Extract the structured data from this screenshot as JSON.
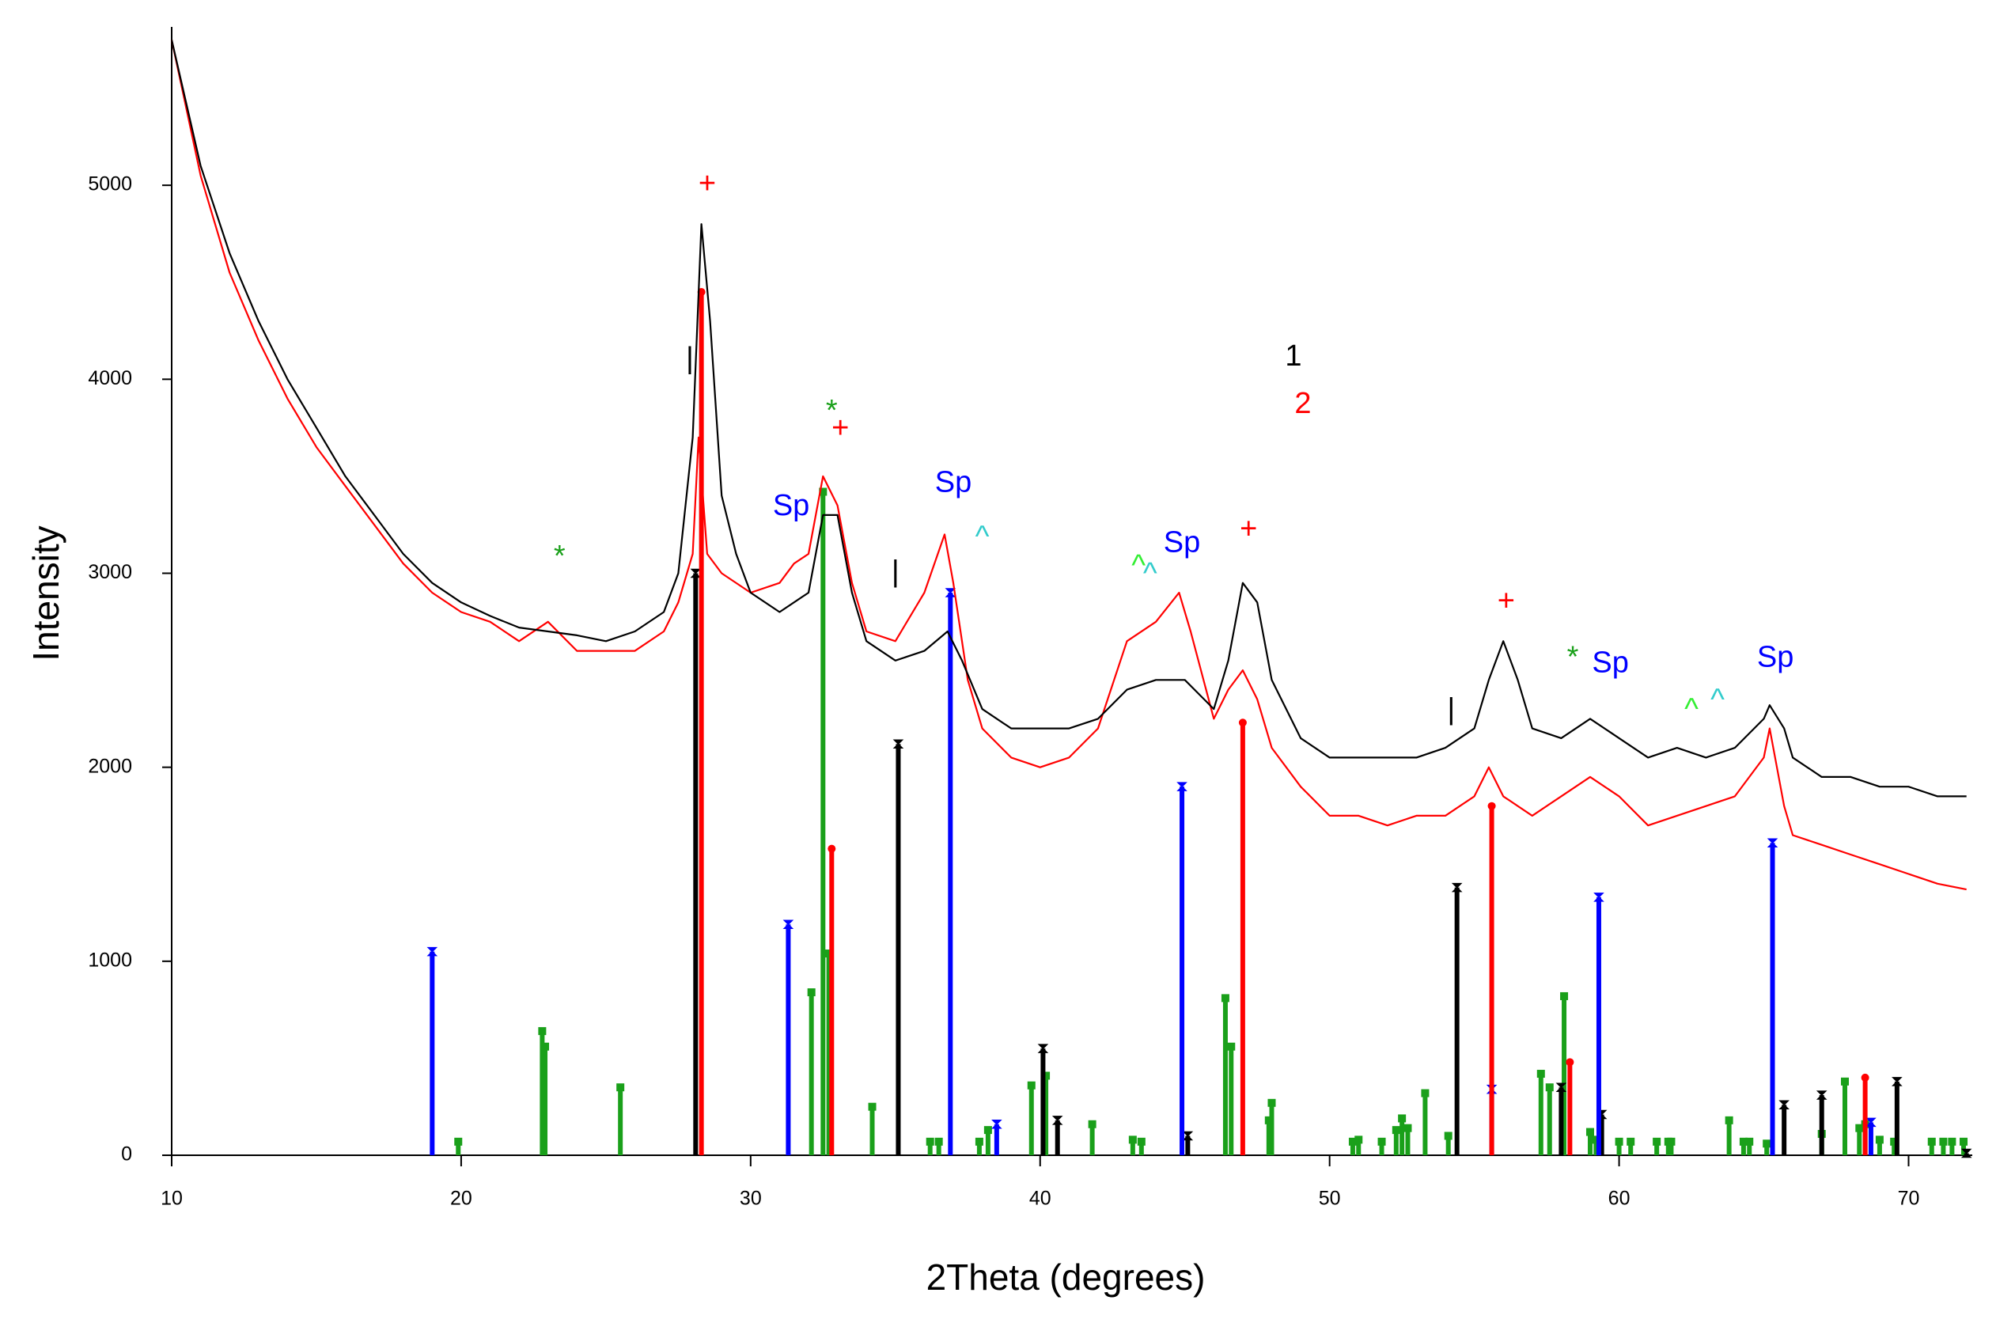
{
  "chart_data": {
    "type": "line",
    "x_label": "2Theta (degrees)",
    "y_label": "Intensity",
    "xlim": [
      10,
      72.2
    ],
    "ylim": [
      0,
      5800
    ],
    "xticks": [
      10,
      20,
      30,
      40,
      50,
      60,
      70
    ],
    "yticks": [
      0,
      1000,
      2000,
      3000,
      4000,
      5000
    ],
    "series": [
      {
        "name": "1",
        "color": "#000000",
        "x": [
          10,
          11,
          12,
          13,
          14,
          15,
          16,
          17,
          18,
          19,
          20,
          21,
          22,
          23,
          24,
          25,
          26,
          27,
          27.5,
          28,
          28.3,
          28.6,
          29,
          29.5,
          30,
          31,
          32,
          32.5,
          33,
          33.5,
          34,
          35,
          36,
          36.8,
          37.3,
          38,
          39,
          40,
          41,
          42,
          43,
          44,
          45,
          46,
          46.5,
          47,
          47.5,
          48,
          49,
          50,
          51,
          52,
          53,
          54,
          55,
          55.5,
          56,
          56.5,
          57,
          58,
          59,
          60,
          61,
          62,
          63,
          64,
          65,
          65.2,
          65.7,
          66,
          67,
          68,
          69,
          70,
          71,
          72
        ],
        "values": [
          5750,
          5100,
          4650,
          4300,
          4000,
          3750,
          3500,
          3300,
          3100,
          2950,
          2850,
          2780,
          2720,
          2700,
          2680,
          2650,
          2700,
          2800,
          3000,
          3700,
          4800,
          4300,
          3400,
          3100,
          2900,
          2800,
          2900,
          3300,
          3300,
          2900,
          2650,
          2550,
          2600,
          2700,
          2550,
          2300,
          2200,
          2200,
          2200,
          2250,
          2400,
          2450,
          2450,
          2300,
          2550,
          2950,
          2850,
          2450,
          2150,
          2050,
          2050,
          2050,
          2050,
          2100,
          2200,
          2450,
          2650,
          2450,
          2200,
          2150,
          2250,
          2150,
          2050,
          2100,
          2050,
          2100,
          2250,
          2320,
          2200,
          2050,
          1950,
          1950,
          1900,
          1900,
          1850,
          1850
        ]
      },
      {
        "name": "2",
        "color": "#ff0000",
        "x": [
          10,
          11,
          12,
          13,
          14,
          15,
          16,
          17,
          18,
          19,
          20,
          21,
          22,
          23,
          24,
          25,
          26,
          27,
          27.5,
          28,
          28.2,
          28.5,
          29,
          30,
          31,
          31.5,
          32,
          32.5,
          33,
          33.5,
          34,
          35,
          36,
          36.7,
          37,
          37.5,
          38,
          39,
          40,
          41,
          42,
          43,
          44,
          44.8,
          45.2,
          46,
          46.5,
          47,
          47.5,
          48,
          49,
          50,
          51,
          52,
          53,
          54,
          55,
          55.5,
          56,
          57,
          58,
          59,
          60,
          61,
          62,
          63,
          64,
          65,
          65.2,
          65.7,
          66,
          67,
          68,
          69,
          70,
          71,
          72
        ],
        "values": [
          5750,
          5050,
          4550,
          4200,
          3900,
          3650,
          3450,
          3250,
          3050,
          2900,
          2800,
          2750,
          2650,
          2750,
          2600,
          2600,
          2600,
          2700,
          2850,
          3100,
          3700,
          3100,
          3000,
          2900,
          2950,
          3050,
          3100,
          3500,
          3350,
          2950,
          2700,
          2650,
          2900,
          3200,
          2950,
          2450,
          2200,
          2050,
          2000,
          2050,
          2200,
          2650,
          2750,
          2900,
          2700,
          2250,
          2400,
          2500,
          2350,
          2100,
          1900,
          1750,
          1750,
          1700,
          1750,
          1750,
          1850,
          2000,
          1850,
          1750,
          1850,
          1950,
          1850,
          1700,
          1750,
          1800,
          1850,
          2050,
          2200,
          1800,
          1650,
          1600,
          1550,
          1500,
          1450,
          1400,
          1370
        ]
      }
    ],
    "sticks": [
      {
        "color": "#1aa01a",
        "marker": "square",
        "x": [
          19.9,
          22.8,
          22.9,
          25.5,
          32.1,
          32.5,
          32.7,
          34.2,
          36.2,
          36.5,
          37.9,
          38.2,
          39.7,
          40.2,
          41.8,
          43.2,
          43.5,
          46.4,
          46.6,
          47.9,
          48.0,
          50.8,
          51.0,
          51.8,
          52.3,
          52.5,
          52.7,
          53.3,
          54.1,
          57.3,
          57.6,
          58.1,
          59.0,
          59.2,
          60.0,
          60.4,
          61.3,
          61.7,
          61.8,
          63.8,
          64.3,
          64.5,
          65.1,
          67.0,
          67.8,
          68.3,
          68.5,
          69.0,
          69.5,
          70.8,
          71.2,
          71.5,
          71.9
        ],
        "values": [
          70,
          640,
          560,
          350,
          840,
          3420,
          1040,
          250,
          70,
          70,
          70,
          130,
          360,
          410,
          160,
          80,
          70,
          810,
          560,
          180,
          270,
          70,
          80,
          70,
          130,
          190,
          140,
          320,
          100,
          420,
          350,
          820,
          120,
          80,
          70,
          70,
          70,
          70,
          70,
          180,
          70,
          70,
          60,
          110,
          380,
          140,
          160,
          80,
          70,
          70,
          70,
          70,
          70
        ]
      },
      {
        "color": "#000000",
        "marker": "hourglass",
        "x": [
          28.1,
          35.1,
          40.1,
          40.6,
          45.1,
          54.4,
          58.0,
          59.4,
          65.7,
          67.0,
          69.6,
          72.0
        ],
        "values": [
          3000,
          2120,
          550,
          180,
          100,
          1380,
          350,
          210,
          260,
          310,
          380,
          10
        ]
      },
      {
        "color": "#0000ff",
        "marker": "hourglass",
        "x": [
          19.0,
          31.3,
          36.9,
          38.5,
          44.9,
          55.6,
          59.3,
          65.3,
          68.7
        ],
        "values": [
          1050,
          1190,
          2900,
          160,
          1900,
          340,
          1330,
          1610,
          170
        ]
      },
      {
        "color": "#ff0000",
        "marker": "circle",
        "x": [
          28.3,
          32.8,
          47.0,
          55.6,
          58.3,
          68.5
        ],
        "values": [
          4450,
          1580,
          2230,
          1800,
          480,
          400
        ]
      }
    ],
    "annotations": [
      {
        "text": "+",
        "x": 28.5,
        "y": 5000,
        "color": "#ff0000"
      },
      {
        "text": "|",
        "x": 27.9,
        "y": 4100,
        "color": "#000000"
      },
      {
        "text": "*",
        "x": 23.4,
        "y": 3080,
        "color": "#1aa01a"
      },
      {
        "text": "*",
        "x": 32.8,
        "y": 3830,
        "color": "#1aa01a"
      },
      {
        "text": "+",
        "x": 33.1,
        "y": 3740,
        "color": "#ff0000"
      },
      {
        "text": "Sp",
        "x": 31.4,
        "y": 3340,
        "color": "#0000ff"
      },
      {
        "text": "|",
        "x": 35.0,
        "y": 3000,
        "color": "#000000"
      },
      {
        "text": "Sp",
        "x": 37.0,
        "y": 3460,
        "color": "#0000ff"
      },
      {
        "text": "^",
        "x": 38.0,
        "y": 3180,
        "color": "#33cccc"
      },
      {
        "text": "^",
        "x": 43.4,
        "y": 3030,
        "color": "#33ee33"
      },
      {
        "text": "^",
        "x": 43.8,
        "y": 2990,
        "color": "#33cccc"
      },
      {
        "text": "Sp",
        "x": 44.9,
        "y": 3150,
        "color": "#0000ff"
      },
      {
        "text": "+",
        "x": 47.2,
        "y": 3220,
        "color": "#ff0000"
      },
      {
        "text": "+",
        "x": 56.1,
        "y": 2850,
        "color": "#ff0000"
      },
      {
        "text": "|",
        "x": 54.2,
        "y": 2290,
        "color": "#000000"
      },
      {
        "text": "*",
        "x": 58.4,
        "y": 2560,
        "color": "#1aa01a"
      },
      {
        "text": "Sp",
        "x": 59.7,
        "y": 2530,
        "color": "#0000ff"
      },
      {
        "text": "^",
        "x": 62.5,
        "y": 2290,
        "color": "#33ee33"
      },
      {
        "text": "^",
        "x": 63.4,
        "y": 2340,
        "color": "#33cccc"
      },
      {
        "text": "Sp",
        "x": 65.4,
        "y": 2560,
        "color": "#0000ff"
      }
    ]
  }
}
